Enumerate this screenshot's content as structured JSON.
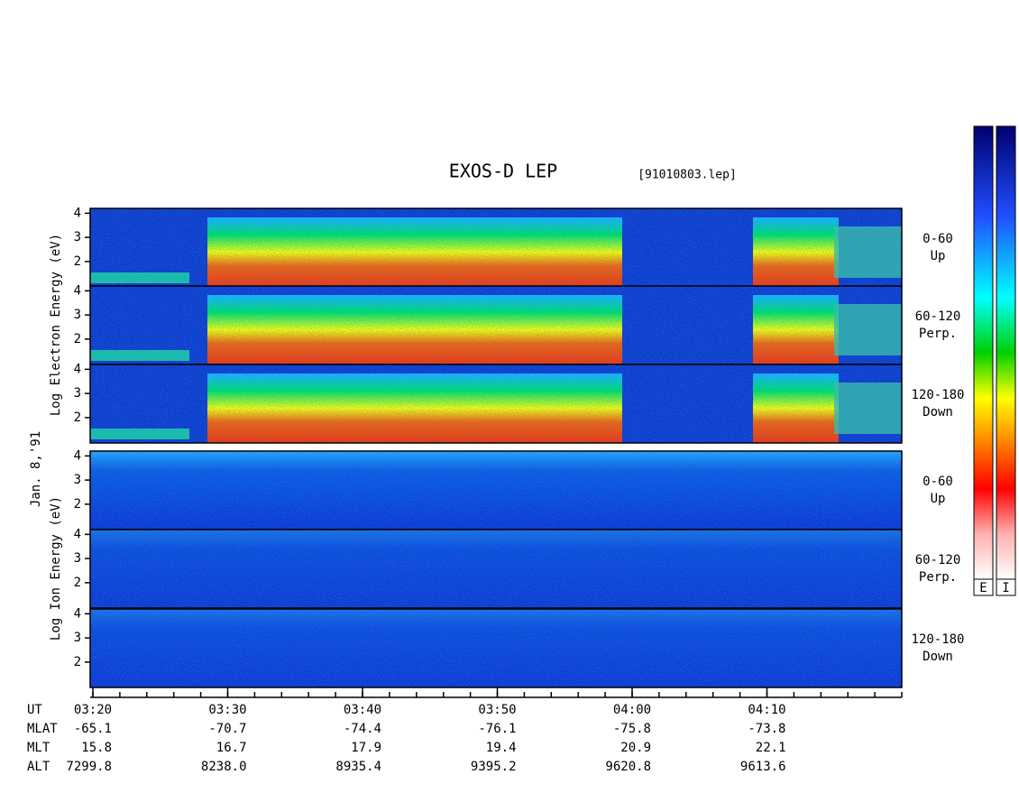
{
  "title": "EXOS-D LEP",
  "file": "[91010803.lep]",
  "date": "Jan. 8,'91",
  "electron_label": "Log Electron Energy (eV)",
  "ion_label": "Log Ion Energy (eV)",
  "energy_axis": {
    "ylim": [
      0.95,
      4.2
    ],
    "yticks": [
      2,
      3,
      4
    ]
  },
  "panel_labels": [
    [
      "0-60",
      "Up"
    ],
    [
      "60-120",
      "Perp."
    ],
    [
      "120-180",
      "Down"
    ]
  ],
  "time_axis": {
    "label": "UT",
    "xlim": [
      200,
      260
    ],
    "xticks": [
      {
        "value": 200,
        "label": "03:20"
      },
      {
        "value": 210,
        "label": "03:30"
      },
      {
        "value": 220,
        "label": "03:40"
      },
      {
        "value": 230,
        "label": "03:50"
      },
      {
        "value": 240,
        "label": "04:00"
      },
      {
        "value": 250,
        "label": "04:10"
      }
    ]
  },
  "ephemeris": [
    {
      "label": "MLAT",
      "values": [
        "-65.1",
        "-70.7",
        "-74.4",
        "-76.1",
        "-75.8",
        "-73.8"
      ]
    },
    {
      "label": "MLT",
      "values": [
        "15.8",
        "16.7",
        "17.9",
        "19.4",
        "20.9",
        "22.1"
      ]
    },
    {
      "label": "ALT",
      "values": [
        "7299.8",
        "8238.0",
        "8935.4",
        "9395.2",
        "9620.8",
        "9613.6"
      ]
    }
  ],
  "colorbars": [
    "E",
    "I"
  ]
}
